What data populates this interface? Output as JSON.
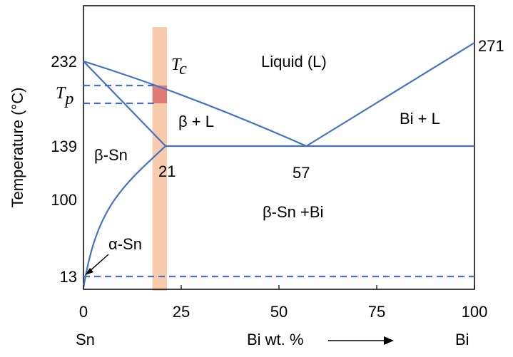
{
  "chart_data": {
    "type": "diagram",
    "title": "",
    "xlabel": "Bi wt. %",
    "ylabel": "Temperature (°C)",
    "x_ticks": [
      "0",
      "25",
      "50",
      "75",
      "100"
    ],
    "x_end_labels": {
      "left": "Sn",
      "right": "Bi"
    },
    "y_ticks": [
      "232",
      "139",
      "100",
      "13"
    ],
    "y_special_labels": {
      "Tp": "T",
      "Tp_sub": "p"
    },
    "right_label": "271",
    "tc_label": {
      "T": "T",
      "sub": "c"
    },
    "point_labels": {
      "eutectic_limit": "21",
      "eutectic": "57"
    },
    "regions": {
      "liquid": "Liquid (L)",
      "beta_l": "β + L",
      "bi_l": "Bi + L",
      "beta_sn": "β-Sn",
      "beta_sn_bi": "β-Sn +Bi",
      "alpha_sn": "α-Sn"
    },
    "lines": {
      "liquidus_left": [
        [
          0,
          232
        ],
        [
          57,
          139
        ]
      ],
      "liquidus_right": [
        [
          57,
          139
        ],
        [
          100,
          271
        ]
      ],
      "eutectic_isotherm": [
        [
          21,
          139
        ],
        [
          100,
          139
        ]
      ],
      "solidus": [
        [
          0,
          232
        ],
        [
          21,
          139
        ]
      ],
      "solvus": [
        [
          0,
          0
        ],
        [
          21,
          139
        ]
      ],
      "allotropic_dashed": [
        [
          0,
          13
        ],
        [
          100,
          13
        ]
      ],
      "Tp_upper_dashed": [
        [
          0,
          212
        ],
        [
          18,
          212
        ]
      ],
      "Tp_lower_dashed": [
        [
          0,
          188
        ],
        [
          18,
          188
        ]
      ]
    },
    "highlight_band_x": [
      18,
      21
    ],
    "colors": {
      "line": "#4472c4",
      "band": "#f8cbad",
      "box": "#e07c78"
    }
  }
}
